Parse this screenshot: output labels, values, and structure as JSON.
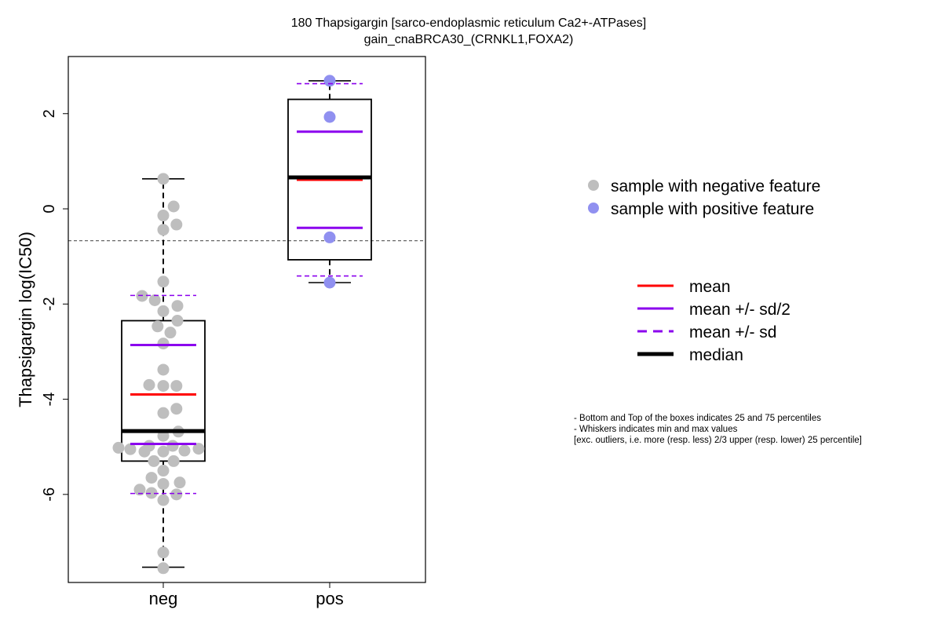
{
  "chart_data": {
    "type": "box",
    "title": "180 Thapsigargin [sarco-endoplasmic reticulum Ca2+-ATPases]",
    "subtitle": "gain_cnaBRCA30_(CRNKL1,FOXA2)",
    "ylabel": "Thapsigargin log(IC50)",
    "xlabel": "",
    "ylim": [
      -7.85,
      3.2
    ],
    "yticks": [
      -6,
      -4,
      -2,
      0,
      2
    ],
    "reference_line_y": -0.67,
    "categories": [
      "neg",
      "pos"
    ],
    "groups": [
      {
        "name": "neg",
        "color": "#bebebe",
        "box": {
          "q1": -5.3,
          "median": -4.67,
          "q3": -2.35,
          "whisker_low": -7.53,
          "whisker_high": 0.63
        },
        "mean": -3.9,
        "mean_minus_half_sd": -4.94,
        "mean_plus_half_sd": -2.86,
        "mean_minus_sd": -5.98,
        "mean_plus_sd": -1.82,
        "points": [
          [
            0.0,
            0.63
          ],
          [
            0.22,
            0.05
          ],
          [
            0.0,
            -0.14
          ],
          [
            0.28,
            -0.33
          ],
          [
            0.0,
            -0.44
          ],
          [
            0.0,
            -1.53
          ],
          [
            -0.45,
            -1.83
          ],
          [
            -0.18,
            -1.92
          ],
          [
            0.3,
            -2.04
          ],
          [
            0.0,
            -2.15
          ],
          [
            0.3,
            -2.35
          ],
          [
            -0.12,
            -2.47
          ],
          [
            0.15,
            -2.6
          ],
          [
            0.0,
            -2.83
          ],
          [
            0.0,
            -3.38
          ],
          [
            -0.3,
            -3.7
          ],
          [
            0.0,
            -3.72
          ],
          [
            0.28,
            -3.72
          ],
          [
            0.28,
            -4.2
          ],
          [
            0.0,
            -4.29
          ],
          [
            0.32,
            -4.68
          ],
          [
            0.0,
            -4.77
          ],
          [
            -0.3,
            -4.98
          ],
          [
            0.2,
            -4.98
          ],
          [
            -0.95,
            -5.02
          ],
          [
            -0.7,
            -5.05
          ],
          [
            -0.4,
            -5.1
          ],
          [
            0.0,
            -5.1
          ],
          [
            0.45,
            -5.08
          ],
          [
            0.75,
            -5.04
          ],
          [
            -0.2,
            -5.3
          ],
          [
            0.22,
            -5.3
          ],
          [
            0.0,
            -5.5
          ],
          [
            -0.25,
            -5.65
          ],
          [
            -0.5,
            -5.9
          ],
          [
            0.0,
            -5.78
          ],
          [
            0.35,
            -5.75
          ],
          [
            -0.25,
            -5.97
          ],
          [
            0.28,
            -6.0
          ],
          [
            0.0,
            -6.12
          ],
          [
            0.0,
            -7.22
          ],
          [
            0.0,
            -7.55
          ]
        ]
      },
      {
        "name": "pos",
        "color": "#9090f0",
        "box": {
          "q1": -1.07,
          "median": 0.66,
          "q3": 2.3,
          "whisker_low": -1.55,
          "whisker_high": 2.69
        },
        "mean": 0.61,
        "mean_minus_half_sd": -0.4,
        "mean_plus_half_sd": 1.62,
        "mean_minus_sd": -1.41,
        "mean_plus_sd": 2.63,
        "points": [
          [
            0,
            2.69
          ],
          [
            0,
            1.93
          ],
          [
            0,
            -0.6
          ],
          [
            0,
            -1.55
          ]
        ]
      }
    ],
    "legend_points": [
      {
        "label": "sample with negative feature",
        "color": "#bebebe"
      },
      {
        "label": "sample with positive feature",
        "color": "#9090f0"
      }
    ],
    "legend_lines": [
      {
        "label": "mean",
        "color": "#ff0000",
        "style": "solid"
      },
      {
        "label": "mean +/- sd/2",
        "color": "#8b00ee",
        "style": "solid"
      },
      {
        "label": "mean +/- sd",
        "color": "#8b00ee",
        "style": "dashed"
      },
      {
        "label": "median",
        "color": "#000000",
        "style": "thick"
      }
    ],
    "notes": [
      "- Bottom and Top of the boxes indicates 25 and 75 percentiles",
      "- Whiskers indicates min and max values",
      "[exc. outliers, i.e. more (resp. less) 2/3 upper (resp. lower) 25 percentile]"
    ]
  }
}
